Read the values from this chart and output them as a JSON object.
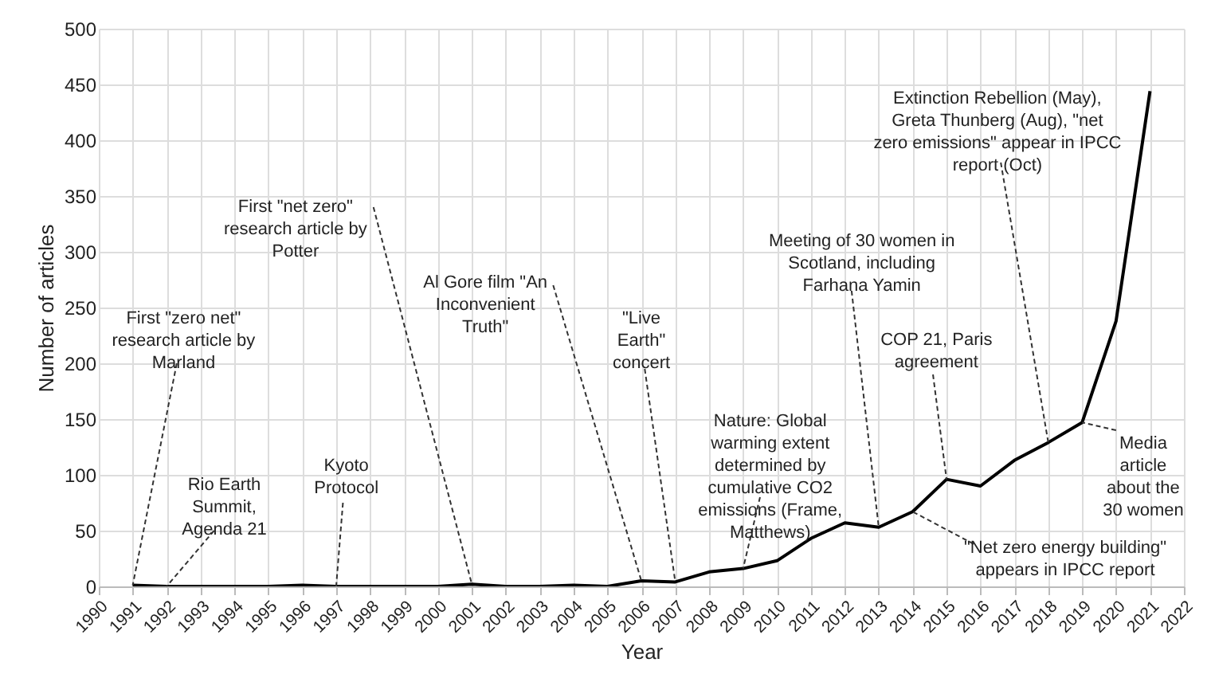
{
  "chart_data": {
    "type": "line",
    "xlabel": "Year",
    "ylabel": "Number of articles",
    "x": [
      1991,
      1992,
      1993,
      1994,
      1995,
      1996,
      1997,
      1998,
      1999,
      2000,
      2001,
      2002,
      2003,
      2004,
      2005,
      2006,
      2007,
      2008,
      2009,
      2010,
      2011,
      2012,
      2013,
      2014,
      2015,
      2016,
      2017,
      2018,
      2019,
      2020,
      2021
    ],
    "series": [
      {
        "color": "#000000",
        "values": [
          1,
          0,
          0,
          0,
          0,
          1,
          0,
          0,
          0,
          0,
          2,
          0,
          0,
          1,
          0,
          5,
          4,
          13,
          16,
          23,
          43,
          57,
          53,
          67,
          96,
          90,
          113,
          129,
          147,
          238,
          444
        ]
      }
    ],
    "xlim": [
      1990,
      2022
    ],
    "xticks": [
      1990,
      1991,
      1992,
      1993,
      1994,
      1995,
      1996,
      1997,
      1998,
      1999,
      2000,
      2001,
      2002,
      2003,
      2004,
      2005,
      2006,
      2007,
      2008,
      2009,
      2010,
      2011,
      2012,
      2013,
      2014,
      2015,
      2016,
      2017,
      2018,
      2019,
      2020,
      2021,
      2022
    ],
    "ylim": [
      0,
      500
    ],
    "yticks": [
      0,
      50,
      100,
      150,
      200,
      250,
      300,
      350,
      400,
      450,
      500
    ],
    "grid": true,
    "annotations": [
      {
        "text": "First \"zero net\" research article by Marland",
        "x": 1991,
        "y": 1
      },
      {
        "text": "Rio Earth Summit, Agenda 21",
        "x": 1992,
        "y": 0
      },
      {
        "text": "Kyoto Protocol",
        "x": 1997,
        "y": 0
      },
      {
        "text": "First \"net zero\" research article by Potter",
        "x": 2001,
        "y": 2
      },
      {
        "text": "Al Gore film \"An Inconvenient Truth\"",
        "x": 2006,
        "y": 5
      },
      {
        "text": "\"Live Earth\" concert",
        "x": 2007,
        "y": 4
      },
      {
        "text": "Nature: Global warming extent determined by cumulative CO2 emissions (Frame, Matthews)",
        "x": 2009,
        "y": 16
      },
      {
        "text": "Meeting of 30 women in Scotland, including Farhana Yamin",
        "x": 2013,
        "y": 53
      },
      {
        "text": "COP 21, Paris agreement",
        "x": 2015,
        "y": 96
      },
      {
        "text": "Extinction Rebellion (May), Greta Thunberg (Aug), \"net zero emissions\" appear in IPCC report (Oct)",
        "x": 2018,
        "y": 129
      },
      {
        "text": "Media article about the 30 women",
        "x": 2019,
        "y": 147
      },
      {
        "text": "\"Net zero energy building\" appears in IPCC report",
        "x": 2014,
        "y": 67
      }
    ]
  }
}
